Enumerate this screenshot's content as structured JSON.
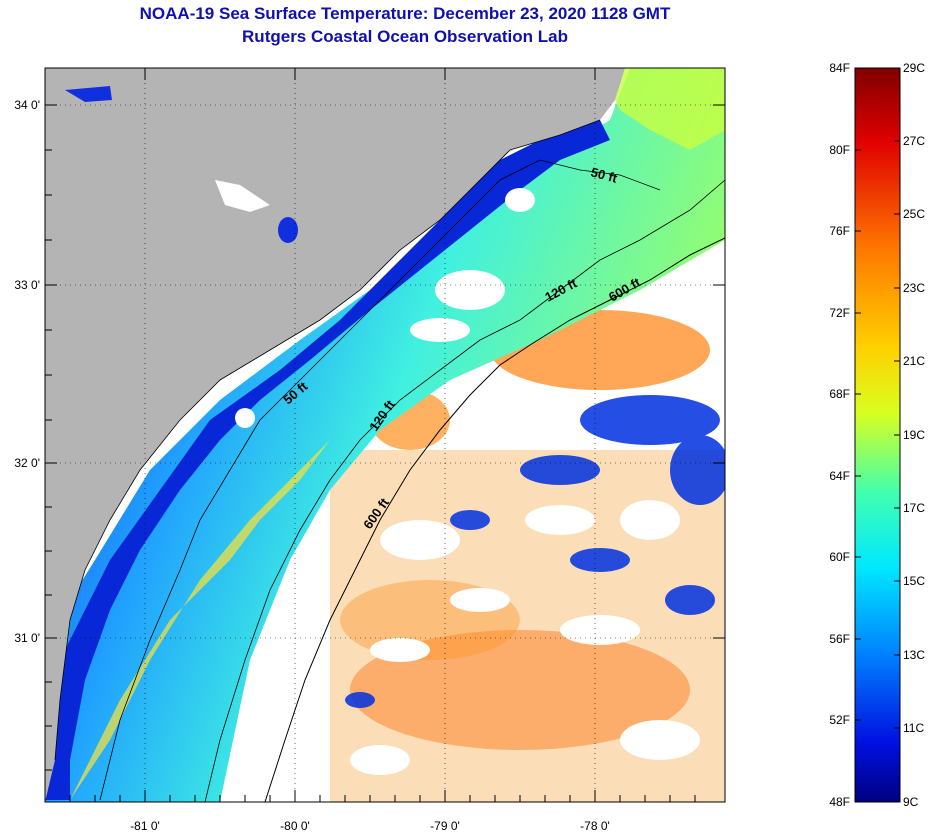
{
  "title": {
    "line1": "NOAA-19 Sea Surface Temperature:  December 23, 2020 1128 GMT",
    "line2": "Rutgers Coastal Ocean Observation Lab"
  },
  "axes": {
    "lon_ticks": [
      "-81 0'",
      "-80 0'",
      "-79 0'",
      "-78 0'"
    ],
    "lat_ticks": [
      "34 0'",
      "33 0'",
      "32 0'",
      "31 0'"
    ]
  },
  "contours": {
    "c50_north": "50 ft",
    "c50_south": "50 ft",
    "c120_north": "120 ft",
    "c120_south": "120 ft",
    "c600_north": "600 ft",
    "c600_south": "600 ft"
  },
  "colorbar": {
    "f_labels": [
      "84F",
      "80F",
      "76F",
      "72F",
      "68F",
      "64F",
      "60F",
      "56F",
      "52F",
      "48F"
    ],
    "c_labels": [
      "29C",
      "27C",
      "25C",
      "23C",
      "21C",
      "19C",
      "17C",
      "15C",
      "13C",
      "11C",
      "9C"
    ],
    "colors": [
      "#800000",
      "#ff0000",
      "#ff8000",
      "#ffff00",
      "#80ff80",
      "#00ffff",
      "#0080ff",
      "#0000ff",
      "#000090"
    ]
  },
  "colors": {
    "land": "#b4b4b4",
    "title": "#1010b0"
  }
}
